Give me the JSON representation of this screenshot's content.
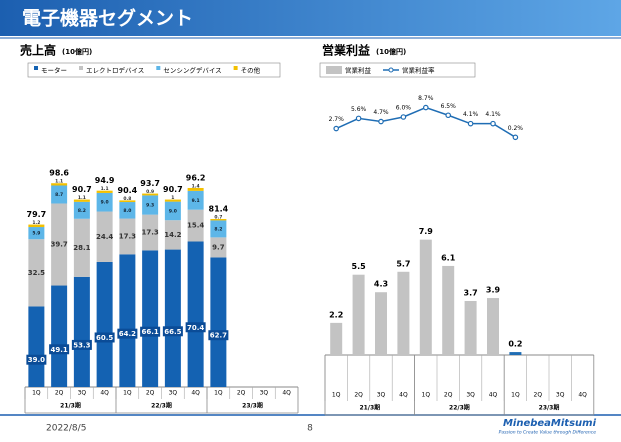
{
  "header": {
    "title": "電子機器セグメント"
  },
  "footer": {
    "date": "2022/8/5",
    "page": "8",
    "logo": "MinebeaMitsumi",
    "tagline": "Passion to Create Value through Difference"
  },
  "chart_data": [
    {
      "type": "stacked_bar",
      "title": "売上高",
      "unit": "(10億円)",
      "categories": [
        "1Q",
        "2Q",
        "3Q",
        "4Q",
        "1Q",
        "2Q",
        "3Q",
        "4Q",
        "1Q",
        "2Q",
        "3Q",
        "4Q"
      ],
      "groups": [
        "21/3期",
        "22/3期",
        "23/3期"
      ],
      "series": [
        {
          "name": "モーター",
          "color": "#1462b2",
          "values": [
            39.0,
            49.1,
            53.3,
            60.5,
            64.2,
            66.1,
            66.5,
            70.4,
            62.7,
            null,
            null,
            null
          ],
          "value_labels": [
            "39.0",
            "49.1",
            "53.3",
            "60.5",
            "64.2",
            "66.1",
            "66.5",
            "70.4",
            "62.7",
            null,
            null,
            null
          ]
        },
        {
          "name": "エレクトロデバイス",
          "color": "#c3c3c3",
          "values": [
            32.5,
            39.7,
            28.1,
            24.4,
            17.3,
            17.3,
            14.2,
            15.4,
            9.7,
            null,
            null,
            null
          ]
        },
        {
          "name": "センシングデバイス",
          "color": "#5db6e8",
          "values": [
            5.9,
            8.7,
            8.2,
            9.0,
            8.0,
            9.3,
            9.0,
            9.1,
            8.2,
            null,
            null,
            null
          ],
          "value_labels": [
            "5.9",
            "8.7",
            "8.2",
            "9.0",
            "8.0",
            "9.3",
            "9.0",
            "9.1",
            "8.2",
            null,
            null,
            null
          ]
        },
        {
          "name": "その他",
          "color": "#f3c000",
          "values": [
            1.2,
            1.1,
            1.1,
            1.1,
            0.8,
            0.9,
            1.0,
            1.4,
            0.7,
            null,
            null,
            null
          ]
        }
      ],
      "totals": [
        79.7,
        98.6,
        90.7,
        94.9,
        90.4,
        93.7,
        90.7,
        96.2,
        81.4,
        null,
        null,
        null
      ],
      "ylim": [
        0,
        120
      ]
    },
    {
      "type": "bar_line",
      "title": "営業利益",
      "unit": "(10億円)",
      "categories": [
        "1Q",
        "2Q",
        "3Q",
        "4Q",
        "1Q",
        "2Q",
        "3Q",
        "4Q",
        "1Q",
        "2Q",
        "3Q",
        "4Q"
      ],
      "groups": [
        "21/3期",
        "22/3期",
        "23/3期"
      ],
      "series": [
        {
          "name": "営業利益",
          "color": "#c3c3c3",
          "values": [
            2.2,
            5.5,
            4.3,
            5.7,
            7.9,
            6.1,
            3.7,
            3.9,
            0.2,
            null,
            null,
            null
          ]
        },
        {
          "name": "営業利益率",
          "color": "#1f6db4",
          "axis": "y2",
          "values": [
            2.7,
            5.6,
            4.7,
            6.0,
            8.7,
            6.5,
            4.1,
            4.1,
            0.2,
            null,
            null,
            null
          ],
          "value_labels": [
            "2.7%",
            "5.6%",
            "4.7%",
            "6.0%",
            "8.7%",
            "6.5%",
            "4.1%",
            "4.1%",
            "0.2%",
            null,
            null,
            null
          ]
        }
      ],
      "ylim": [
        0,
        10
      ],
      "y2lim": [
        0,
        10
      ]
    }
  ]
}
